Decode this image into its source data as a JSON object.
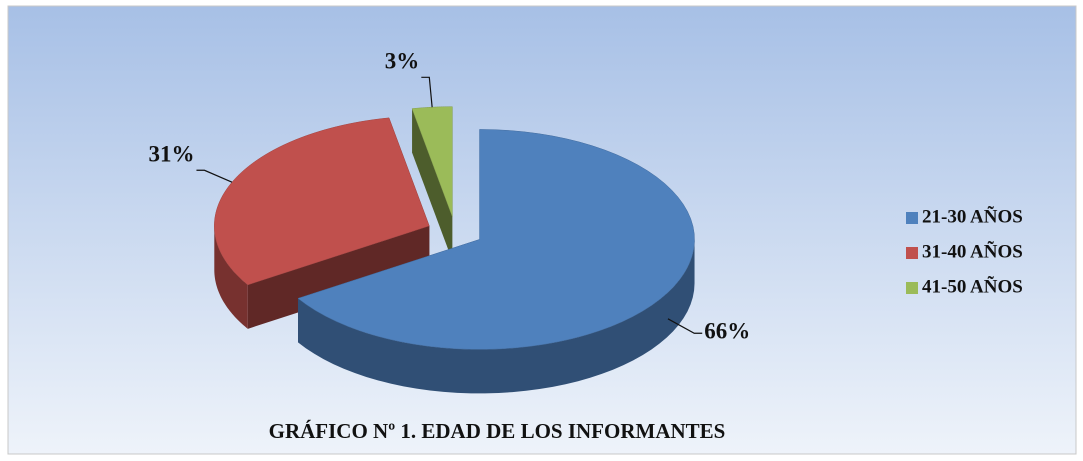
{
  "chart_data": {
    "type": "pie",
    "title": "GRÁFICO Nº 1. EDAD DE LOS INFORMANTES",
    "categories": [
      "21-30 AÑOS",
      "31-40 AÑOS",
      "41-50 AÑOS"
    ],
    "values": [
      66,
      31,
      3
    ],
    "value_labels": [
      "66%",
      "31%",
      "3%"
    ],
    "colors": [
      "#4f81bd",
      "#c0504d",
      "#9bbb59"
    ],
    "legend": "right"
  }
}
